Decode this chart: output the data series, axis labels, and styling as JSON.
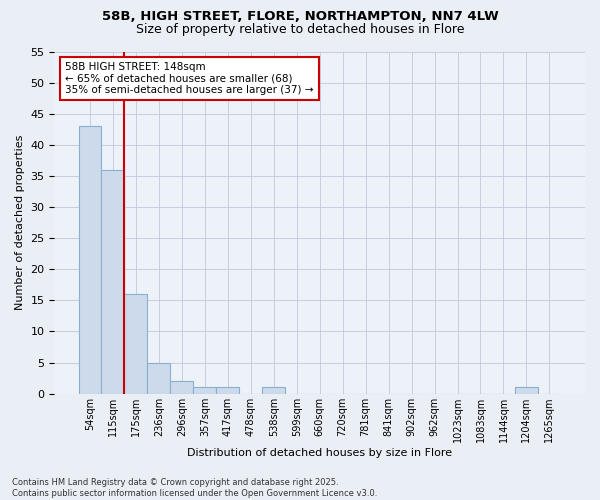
{
  "title1": "58B, HIGH STREET, FLORE, NORTHAMPTON, NN7 4LW",
  "title2": "Size of property relative to detached houses in Flore",
  "xlabel": "Distribution of detached houses by size in Flore",
  "ylabel": "Number of detached properties",
  "bar_labels": [
    "54sqm",
    "115sqm",
    "175sqm",
    "236sqm",
    "296sqm",
    "357sqm",
    "417sqm",
    "478sqm",
    "538sqm",
    "599sqm",
    "660sqm",
    "720sqm",
    "781sqm",
    "841sqm",
    "902sqm",
    "962sqm",
    "1023sqm",
    "1083sqm",
    "1144sqm",
    "1204sqm",
    "1265sqm"
  ],
  "bar_values": [
    43,
    36,
    16,
    5,
    2,
    1,
    1,
    0,
    1,
    0,
    0,
    0,
    0,
    0,
    0,
    0,
    0,
    0,
    0,
    1,
    0
  ],
  "bar_color": "#ccdaeb",
  "bar_edge_color": "#8ab0d0",
  "red_line_x": 1.5,
  "annotation_title": "58B HIGH STREET: 148sqm",
  "annotation_line1": "← 65% of detached houses are smaller (68)",
  "annotation_line2": "35% of semi-detached houses are larger (37) →",
  "vline_color": "#cc0000",
  "ylim": [
    0,
    55
  ],
  "yticks": [
    0,
    5,
    10,
    15,
    20,
    25,
    30,
    35,
    40,
    45,
    50,
    55
  ],
  "footer_line1": "Contains HM Land Registry data © Crown copyright and database right 2025.",
  "footer_line2": "Contains public sector information licensed under the Open Government Licence v3.0.",
  "bg_color": "#eaeef5",
  "plot_bg_color": "#edf1f8"
}
